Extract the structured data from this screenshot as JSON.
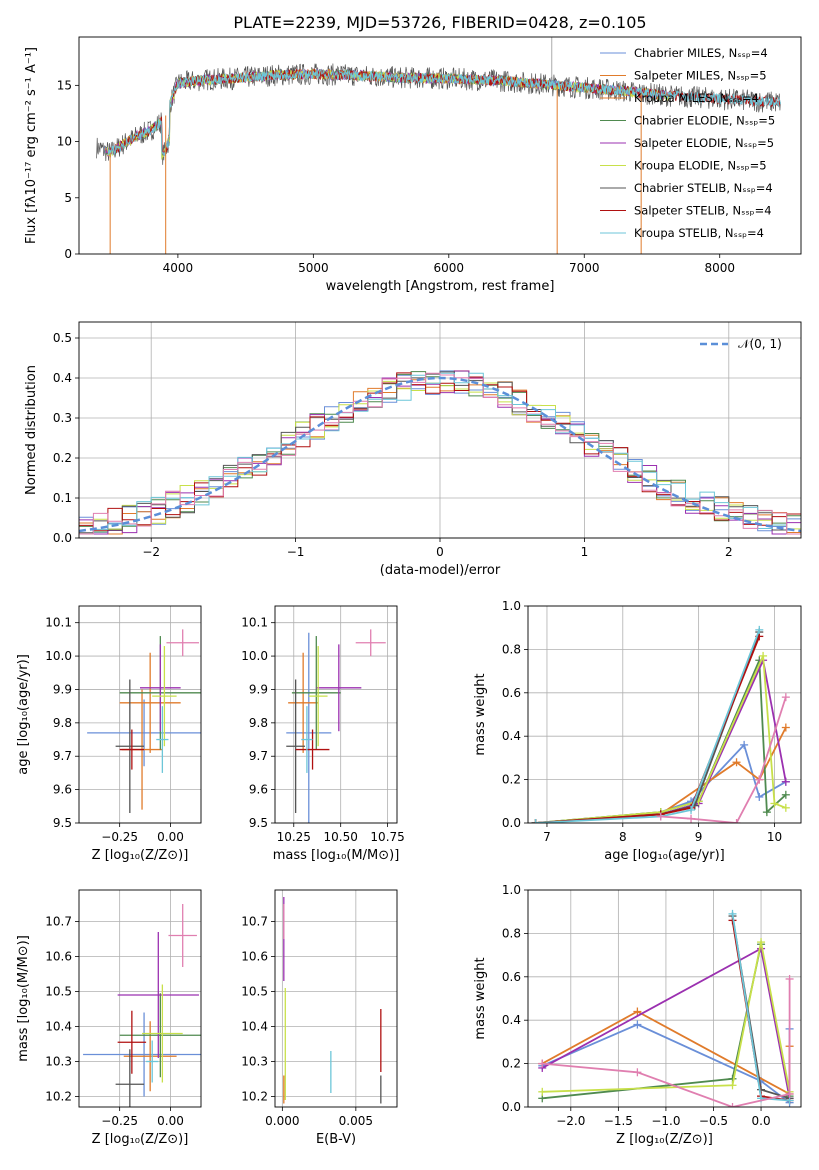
{
  "title": "PLATE=2239, MJD=53726, FIBERID=0428, z=0.105",
  "colors": {
    "chabrier_miles": "#6a8fd8",
    "salpeter_miles": "#e07b2b",
    "kroupa_miles": "#e07b2b",
    "chabrier_elodie": "#4f8a4f",
    "salpeter_elodie": "#9b30b0",
    "kroupa_elodie": "#c8e04a",
    "chabrier_stelib": "#555555",
    "salpeter_stelib": "#b01010",
    "kroupa_stelib": "#6cc6d8",
    "pink": "#e07fb0",
    "gaussian": "#5b8fd8"
  },
  "chart_data": [
    {
      "id": "spectrum",
      "type": "line",
      "xlabel": "wavelength [Angstrom, rest frame]",
      "ylabel": "Flux [fλ10⁻¹⁷ erg cm⁻² s⁻¹ A⁻¹]",
      "xlim": [
        3270,
        8600
      ],
      "ylim": [
        0,
        19.3
      ],
      "xticks": [
        "4000",
        "5000",
        "6000",
        "7000",
        "8000"
      ],
      "yticks": [
        "0",
        "5",
        "10",
        "15"
      ],
      "grid": false,
      "legend_position": "top-right",
      "legend": [
        "Chabrier MILES, Nₛₛₚ=4",
        "Salpeter MILES, Nₛₛₚ=5",
        "Kroupa MILES, Nₛₛₚ=4",
        "Chabrier ELODIE, Nₛₛₚ=5",
        "Salpeter ELODIE, Nₛₛₚ=5",
        "Kroupa ELODIE, Nₛₛₚ=5",
        "Chabrier STELIB, Nₛₛₚ=4",
        "Salpeter STELIB, Nₛₛₚ=4",
        "Kroupa STELIB, Nₛₛₚ=4"
      ],
      "continuum": {
        "x": [
          3400,
          3500,
          3600,
          3700,
          3800,
          3900,
          4000,
          4200,
          4400,
          4700,
          5000,
          5300,
          5600,
          6000,
          6400,
          6800,
          7200,
          7600,
          8000,
          8400
        ],
        "y": [
          9.5,
          9.0,
          9.8,
          10.5,
          11.0,
          12.0,
          15.2,
          15.5,
          15.6,
          15.9,
          16.0,
          15.9,
          15.7,
          15.6,
          15.4,
          15.0,
          14.6,
          14.1,
          13.8,
          13.5
        ]
      },
      "drops": [
        {
          "x": 3500,
          "y": 0
        },
        {
          "x": 3910,
          "y": 0
        },
        {
          "x": 6800,
          "y": 0
        },
        {
          "x": 7420,
          "y": 0
        }
      ]
    },
    {
      "id": "residuals",
      "type": "histogram",
      "xlabel": "(data-model)/error",
      "ylabel": "Normed distribution",
      "xlim": [
        -2.5,
        2.5
      ],
      "ylim": [
        0,
        0.54
      ],
      "xticks": [
        "−2",
        "−1",
        "0",
        "1",
        "2"
      ],
      "yticks": [
        "0.0",
        "0.1",
        "0.2",
        "0.3",
        "0.4",
        "0.5"
      ],
      "grid": true,
      "legend": [
        "𝒩(0, 1)"
      ],
      "legend_position": "top-right",
      "bin_width": 0.1,
      "bin_start": -2.5,
      "peak": 0.39
    },
    {
      "id": "age_vs_Z",
      "type": "errorbar",
      "xlabel": "Z [log₁₀(Z/Z⊙)]",
      "ylabel": "age  [log₁₀(age/yr)]",
      "xlim": [
        -0.45,
        0.15
      ],
      "ylim": [
        9.5,
        10.15
      ],
      "xticks": [
        "−0.25",
        "0.00"
      ],
      "yticks": [
        "9.5",
        "9.6",
        "9.7",
        "9.8",
        "9.9",
        "10.0",
        "10.1"
      ],
      "grid": true,
      "points": [
        {
          "x": -0.13,
          "y": 9.77,
          "xerr": 0.28,
          "yerr": 0.1,
          "c": "chabrier_miles"
        },
        {
          "x": -0.1,
          "y": 9.86,
          "xerr": 0.15,
          "yerr": 0.15,
          "c": "salpeter_miles"
        },
        {
          "x": -0.14,
          "y": 9.72,
          "xerr": 0.1,
          "yerr": 0.18,
          "c": "salpeter_miles"
        },
        {
          "x": -0.05,
          "y": 9.89,
          "xerr": 0.2,
          "yerr": 0.17,
          "c": "chabrier_elodie"
        },
        {
          "x": -0.05,
          "y": 9.905,
          "xerr": 0.1,
          "yerr": 0.13,
          "c": "salpeter_elodie"
        },
        {
          "x": -0.03,
          "y": 9.88,
          "xerr": 0.06,
          "yerr": 0.15,
          "c": "kroupa_elodie"
        },
        {
          "x": -0.2,
          "y": 9.73,
          "xerr": 0.07,
          "yerr": 0.2,
          "c": "chabrier_stelib"
        },
        {
          "x": -0.19,
          "y": 9.72,
          "xerr": 0.06,
          "yerr": 0.06,
          "c": "salpeter_stelib"
        },
        {
          "x": -0.04,
          "y": 9.75,
          "xerr": 0.03,
          "yerr": 0.1,
          "c": "kroupa_stelib"
        },
        {
          "x": 0.06,
          "y": 10.04,
          "xerr": 0.08,
          "yerr": 0.04,
          "c": "pink"
        }
      ]
    },
    {
      "id": "age_vs_mass",
      "type": "errorbar",
      "xlabel": "mass [log₁₀(M/M⊙)]",
      "ylabel": "",
      "xlim": [
        10.15,
        10.8
      ],
      "ylim": [
        9.5,
        10.15
      ],
      "xticks": [
        "10.25",
        "10.50",
        "10.75"
      ],
      "yticks": [
        "9.5",
        "9.6",
        "9.7",
        "9.8",
        "9.9",
        "10.0",
        "10.1"
      ],
      "grid": true,
      "points": [
        {
          "x": 10.33,
          "y": 9.77,
          "xerr": 0.12,
          "yerr": 0.3,
          "c": "chabrier_miles"
        },
        {
          "x": 10.3,
          "y": 9.86,
          "xerr": 0.08,
          "yerr": 0.15,
          "c": "salpeter_miles"
        },
        {
          "x": 10.37,
          "y": 9.89,
          "xerr": 0.13,
          "yerr": 0.17,
          "c": "chabrier_elodie"
        },
        {
          "x": 10.49,
          "y": 9.905,
          "xerr": 0.12,
          "yerr": 0.13,
          "c": "salpeter_elodie"
        },
        {
          "x": 10.38,
          "y": 9.88,
          "xerr": 0.05,
          "yerr": 0.15,
          "c": "kroupa_elodie"
        },
        {
          "x": 10.26,
          "y": 9.73,
          "xerr": 0.05,
          "yerr": 0.2,
          "c": "chabrier_stelib"
        },
        {
          "x": 10.35,
          "y": 9.72,
          "xerr": 0.09,
          "yerr": 0.06,
          "c": "salpeter_stelib"
        },
        {
          "x": 10.32,
          "y": 9.75,
          "xerr": 0.03,
          "yerr": 0.1,
          "c": "kroupa_stelib"
        },
        {
          "x": 10.66,
          "y": 10.04,
          "xerr": 0.08,
          "yerr": 0.04,
          "c": "pink"
        }
      ]
    },
    {
      "id": "mass_weight_vs_age",
      "type": "line",
      "xlabel": "age  [log₁₀(age/yr)]",
      "ylabel": "mass weight",
      "xlim": [
        6.75,
        10.35
      ],
      "ylim": [
        0,
        1.0
      ],
      "xticks": [
        "7",
        "8",
        "9",
        "10"
      ],
      "yticks": [
        "0.0",
        "0.2",
        "0.4",
        "0.6",
        "0.8",
        "1.0"
      ],
      "grid": true,
      "series": [
        {
          "c": "chabrier_miles",
          "x": [
            6.85,
            8.5,
            8.9,
            9.6,
            9.8,
            10.15
          ],
          "y": [
            0.0,
            0.05,
            0.1,
            0.36,
            0.12,
            0.19
          ]
        },
        {
          "c": "salpeter_miles",
          "x": [
            6.85,
            8.5,
            9.5,
            9.8,
            10.15
          ],
          "y": [
            0.0,
            0.04,
            0.28,
            0.2,
            0.44
          ]
        },
        {
          "c": "chabrier_elodie",
          "x": [
            6.85,
            8.5,
            9.0,
            9.8,
            9.9,
            10.15
          ],
          "y": [
            0.0,
            0.05,
            0.1,
            0.75,
            0.05,
            0.13
          ]
        },
        {
          "c": "salpeter_elodie",
          "x": [
            6.85,
            8.5,
            9.0,
            9.85,
            10.15
          ],
          "y": [
            0.0,
            0.04,
            0.09,
            0.75,
            0.19
          ]
        },
        {
          "c": "kroupa_elodie",
          "x": [
            6.85,
            8.5,
            9.0,
            9.85,
            10.0,
            10.15
          ],
          "y": [
            0.0,
            0.05,
            0.1,
            0.77,
            0.09,
            0.07
          ]
        },
        {
          "c": "chabrier_stelib",
          "x": [
            6.85,
            8.5,
            8.95,
            9.8
          ],
          "y": [
            0.0,
            0.04,
            0.08,
            0.88
          ]
        },
        {
          "c": "salpeter_stelib",
          "x": [
            6.85,
            8.5,
            8.9,
            9.8
          ],
          "y": [
            0.0,
            0.04,
            0.07,
            0.86
          ]
        },
        {
          "c": "kroupa_stelib",
          "x": [
            6.85,
            8.5,
            8.9,
            9.8
          ],
          "y": [
            0.0,
            0.03,
            0.06,
            0.89
          ]
        },
        {
          "c": "pink",
          "x": [
            8.5,
            8.9,
            9.5,
            9.8,
            10.15
          ],
          "y": [
            0.03,
            0.02,
            0.0,
            0.2,
            0.58
          ]
        }
      ]
    },
    {
      "id": "mass_vs_Z",
      "type": "errorbar",
      "xlabel": "Z [log₁₀(Z/Z⊙)]",
      "ylabel": "mass [log₁₀(M/M⊙)]",
      "xlim": [
        -0.45,
        0.15
      ],
      "ylim": [
        10.17,
        10.79
      ],
      "xticks": [
        "−0.25",
        "0.00"
      ],
      "yticks": [
        "10.2",
        "10.3",
        "10.4",
        "10.5",
        "10.6",
        "10.7"
      ],
      "grid": true,
      "points": [
        {
          "x": -0.13,
          "y": 10.32,
          "xerr": 0.3,
          "yerr": 0.12,
          "c": "chabrier_miles"
        },
        {
          "x": -0.1,
          "y": 10.315,
          "xerr": 0.13,
          "yerr": 0.1,
          "c": "salpeter_miles"
        },
        {
          "x": -0.05,
          "y": 10.375,
          "xerr": 0.2,
          "yerr": 0.12,
          "c": "chabrier_elodie"
        },
        {
          "x": -0.06,
          "y": 10.49,
          "xerr": 0.2,
          "yerr": 0.18,
          "c": "salpeter_elodie"
        },
        {
          "x": -0.04,
          "y": 10.38,
          "xerr": 0.1,
          "yerr": 0.14,
          "c": "kroupa_elodie"
        },
        {
          "x": -0.2,
          "y": 10.235,
          "xerr": 0.07,
          "yerr": 0.1,
          "c": "chabrier_stelib"
        },
        {
          "x": -0.19,
          "y": 10.355,
          "xerr": 0.07,
          "yerr": 0.09,
          "c": "salpeter_stelib"
        },
        {
          "x": -0.09,
          "y": 10.3,
          "xerr": 0.03,
          "yerr": 0.06,
          "c": "kroupa_stelib"
        },
        {
          "x": 0.06,
          "y": 10.66,
          "xerr": 0.07,
          "yerr": 0.09,
          "c": "pink"
        }
      ]
    },
    {
      "id": "mass_vs_ebv",
      "type": "errorbar",
      "xlabel": "E(B-V)",
      "ylabel": "",
      "xlim": [
        -0.0005,
        0.0078
      ],
      "ylim": [
        10.17,
        10.79
      ],
      "xticks": [
        "0.000",
        "0.005"
      ],
      "yticks": [
        "10.2",
        "10.3",
        "10.4",
        "10.5",
        "10.6",
        "10.7"
      ],
      "grid": true,
      "points": [
        {
          "x": 0.0001,
          "y": 10.65,
          "xerr": 0,
          "yerr": 0.12,
          "c": "salpeter_elodie"
        },
        {
          "x": 0.0001,
          "y": 10.7,
          "xerr": 0,
          "yerr": 0.05,
          "c": "pink"
        },
        {
          "x": 0.0002,
          "y": 10.35,
          "xerr": 0,
          "yerr": 0.16,
          "c": "kroupa_elodie"
        },
        {
          "x": 0.0001,
          "y": 10.22,
          "xerr": 0,
          "yerr": 0.04,
          "c": "salpeter_miles"
        },
        {
          "x": 0.0033,
          "y": 10.27,
          "xerr": 0,
          "yerr": 0.06,
          "c": "kroupa_stelib"
        },
        {
          "x": 0.0067,
          "y": 10.36,
          "xerr": 0,
          "yerr": 0.09,
          "c": "salpeter_stelib"
        },
        {
          "x": 0.0067,
          "y": 10.22,
          "xerr": 0,
          "yerr": 0.04,
          "c": "chabrier_stelib"
        }
      ]
    },
    {
      "id": "mass_weight_vs_Z",
      "type": "line",
      "xlabel": "Z [log₁₀(Z/Z⊙)]",
      "ylabel": "mass weight",
      "xlim": [
        -2.45,
        0.42
      ],
      "ylim": [
        0,
        1.0
      ],
      "xticks": [
        "−2.0",
        "−1.5",
        "−1.0",
        "−0.5",
        "0.0"
      ],
      "yticks": [
        "0.0",
        "0.2",
        "0.4",
        "0.6",
        "0.8",
        "1.0"
      ],
      "grid": true,
      "series": [
        {
          "c": "chabrier_miles",
          "x": [
            -2.3,
            -1.3,
            0.0,
            0.3,
            0.3
          ],
          "y": [
            0.19,
            0.38,
            0.12,
            0.02,
            0.36
          ]
        },
        {
          "c": "salpeter_miles",
          "x": [
            -2.3,
            -1.3,
            0.3,
            0.3
          ],
          "y": [
            0.2,
            0.44,
            0.06,
            0.28
          ]
        },
        {
          "c": "chabrier_elodie",
          "x": [
            -2.3,
            -0.3,
            0.0,
            0.3
          ],
          "y": [
            0.04,
            0.13,
            0.75,
            0.05
          ]
        },
        {
          "c": "salpeter_elodie",
          "x": [
            -2.3,
            0.0,
            0.3
          ],
          "y": [
            0.18,
            0.73,
            0.04
          ]
        },
        {
          "c": "kroupa_elodie",
          "x": [
            -2.3,
            -0.3,
            0.0,
            0.3
          ],
          "y": [
            0.07,
            0.1,
            0.76,
            0.07
          ]
        },
        {
          "c": "chabrier_stelib",
          "x": [
            -0.3,
            0.0,
            0.3
          ],
          "y": [
            0.88,
            0.08,
            0.04
          ]
        },
        {
          "c": "salpeter_stelib",
          "x": [
            -0.3,
            0.0,
            0.3
          ],
          "y": [
            0.86,
            0.05,
            0.03
          ]
        },
        {
          "c": "kroupa_stelib",
          "x": [
            -0.3,
            0.0,
            0.3
          ],
          "y": [
            0.89,
            0.04,
            0.03
          ]
        },
        {
          "c": "pink",
          "x": [
            -2.3,
            -1.3,
            -0.3,
            0.3,
            0.3
          ],
          "y": [
            0.2,
            0.16,
            0.0,
            0.06,
            0.59
          ]
        }
      ]
    }
  ]
}
